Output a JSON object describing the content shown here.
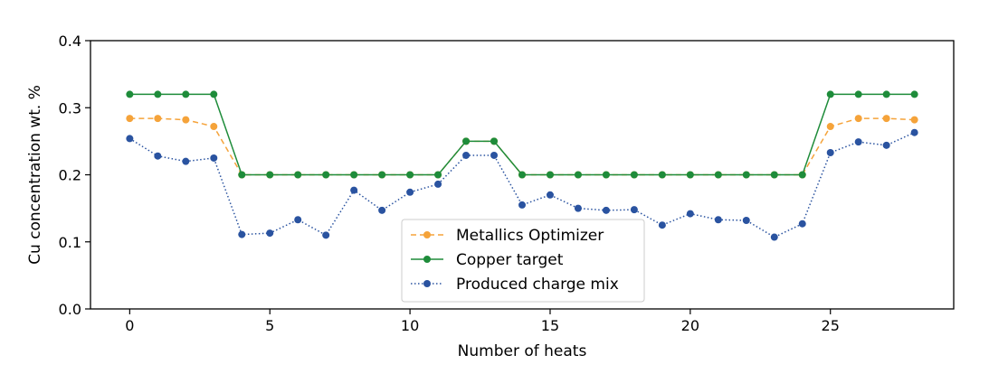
{
  "chart_data": {
    "type": "line",
    "xlabel": "Number of heats",
    "ylabel": "Cu concentration wt. %",
    "xlim": [
      -1.4,
      29.4
    ],
    "ylim": [
      0,
      0.4
    ],
    "x_ticks": [
      0,
      5,
      10,
      15,
      20,
      25
    ],
    "x_tick_labels": [
      "0",
      "5",
      "10",
      "15",
      "20",
      "25"
    ],
    "y_ticks": [
      0,
      0.1,
      0.2,
      0.3,
      0.4
    ],
    "y_tick_labels": [
      "0.0",
      "0.1",
      "0.2",
      "0.3",
      "0.4"
    ],
    "grid": false,
    "legend_position": "lower-center",
    "x": [
      0,
      1,
      2,
      3,
      4,
      5,
      6,
      7,
      8,
      9,
      10,
      11,
      12,
      13,
      14,
      15,
      16,
      17,
      18,
      19,
      20,
      21,
      22,
      23,
      24,
      25,
      26,
      27,
      28
    ],
    "series": [
      {
        "name": "Metallics Optimizer",
        "color": "#f5a33a",
        "line_style": "dashed",
        "values": [
          0.284,
          0.284,
          0.282,
          0.272,
          0.2,
          0.2,
          0.2,
          0.2,
          0.2,
          0.2,
          0.2,
          0.2,
          0.25,
          0.25,
          0.2,
          0.2,
          0.2,
          0.2,
          0.2,
          0.2,
          0.2,
          0.2,
          0.2,
          0.2,
          0.2,
          0.272,
          0.284,
          0.284,
          0.282
        ]
      },
      {
        "name": "Copper target",
        "color": "#1e8c3a",
        "line_style": "solid",
        "values": [
          0.32,
          0.32,
          0.32,
          0.32,
          0.2,
          0.2,
          0.2,
          0.2,
          0.2,
          0.2,
          0.2,
          0.2,
          0.25,
          0.25,
          0.2,
          0.2,
          0.2,
          0.2,
          0.2,
          0.2,
          0.2,
          0.2,
          0.2,
          0.2,
          0.2,
          0.32,
          0.32,
          0.32,
          0.32
        ]
      },
      {
        "name": "Produced charge mix",
        "color": "#2a53a0",
        "line_style": "dotted",
        "values": [
          0.254,
          0.228,
          0.22,
          0.225,
          0.111,
          0.113,
          0.133,
          0.11,
          0.177,
          0.147,
          0.174,
          0.186,
          0.229,
          0.229,
          0.155,
          0.17,
          0.15,
          0.147,
          0.148,
          0.125,
          0.142,
          0.133,
          0.132,
          0.107,
          0.127,
          0.233,
          0.249,
          0.244,
          0.263
        ]
      }
    ]
  }
}
